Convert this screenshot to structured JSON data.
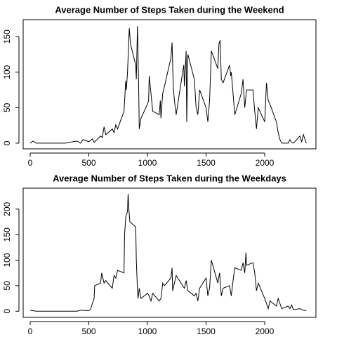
{
  "chart_data": [
    {
      "type": "line",
      "title": "Average Number of Steps Taken during the Weekend",
      "color": "#000000",
      "x": [
        0,
        25,
        50,
        100,
        200,
        300,
        330,
        400,
        430,
        450,
        500,
        530,
        545,
        600,
        615,
        630,
        645,
        700,
        715,
        730,
        745,
        800,
        815,
        820,
        830,
        845,
        855,
        900,
        905,
        915,
        925,
        930,
        945,
        1000,
        1010,
        1015,
        1030,
        1045,
        1100,
        1110,
        1115,
        1130,
        1145,
        1200,
        1210,
        1220,
        1230,
        1245,
        1300,
        1310,
        1315,
        1330,
        1335,
        1345,
        1400,
        1415,
        1430,
        1445,
        1500,
        1515,
        1530,
        1545,
        1600,
        1610,
        1620,
        1630,
        1645,
        1700,
        1710,
        1715,
        1730,
        1745,
        1800,
        1815,
        1830,
        1845,
        1900,
        1915,
        1930,
        1945,
        2000,
        2015,
        2030,
        2045,
        2100,
        2115,
        2130,
        2145,
        2200,
        2215,
        2230,
        2245,
        2300,
        2315,
        2330,
        2355
      ],
      "values": [
        0,
        3,
        0,
        0,
        0,
        0,
        1,
        3,
        0,
        5,
        2,
        6,
        1,
        10,
        8,
        23,
        12,
        20,
        15,
        26,
        20,
        45,
        88,
        75,
        100,
        162,
        140,
        110,
        90,
        165,
        80,
        20,
        35,
        55,
        60,
        95,
        70,
        45,
        40,
        60,
        35,
        70,
        80,
        120,
        142,
        80,
        60,
        40,
        100,
        110,
        80,
        130,
        30,
        125,
        90,
        50,
        40,
        75,
        50,
        30,
        60,
        130,
        105,
        140,
        145,
        90,
        85,
        110,
        95,
        100,
        70,
        40,
        70,
        90,
        50,
        75,
        75,
        45,
        20,
        50,
        30,
        85,
        60,
        55,
        30,
        15,
        5,
        0,
        0,
        5,
        1,
        0,
        10,
        2,
        12,
        0
      ],
      "xlim": [
        -60,
        2437
      ],
      "ylim": [
        -8,
        174
      ],
      "xticks": [
        0,
        500,
        1000,
        1500,
        2000
      ],
      "yticks": [
        0,
        50,
        100,
        150
      ]
    },
    {
      "type": "line",
      "title": "Average Number of Steps Taken during the Weekdays",
      "color": "#000000",
      "x": [
        0,
        50,
        100,
        200,
        300,
        400,
        430,
        500,
        515,
        530,
        545,
        550,
        600,
        610,
        620,
        630,
        645,
        700,
        715,
        730,
        745,
        800,
        805,
        815,
        830,
        835,
        840,
        850,
        900,
        905,
        915,
        920,
        930,
        945,
        1000,
        1015,
        1030,
        1045,
        1100,
        1115,
        1130,
        1145,
        1200,
        1210,
        1215,
        1230,
        1245,
        1300,
        1315,
        1330,
        1345,
        1400,
        1415,
        1430,
        1445,
        1500,
        1515,
        1530,
        1545,
        1600,
        1615,
        1630,
        1645,
        1700,
        1715,
        1730,
        1745,
        1800,
        1815,
        1830,
        1840,
        1845,
        1900,
        1915,
        1930,
        1945,
        2000,
        2015,
        2030,
        2045,
        2100,
        2115,
        2130,
        2145,
        2200,
        2215,
        2230,
        2245,
        2300,
        2330,
        2355
      ],
      "values": [
        2,
        0,
        0,
        0,
        0,
        0,
        2,
        1,
        4,
        15,
        25,
        50,
        55,
        75,
        65,
        55,
        60,
        45,
        70,
        65,
        80,
        75,
        150,
        185,
        195,
        230,
        205,
        175,
        165,
        100,
        40,
        25,
        45,
        25,
        35,
        30,
        20,
        35,
        20,
        25,
        55,
        50,
        65,
        85,
        40,
        55,
        70,
        50,
        45,
        60,
        40,
        30,
        35,
        20,
        45,
        65,
        30,
        45,
        100,
        55,
        75,
        30,
        45,
        50,
        30,
        60,
        85,
        80,
        95,
        75,
        115,
        90,
        95,
        75,
        40,
        55,
        25,
        15,
        5,
        20,
        10,
        25,
        15,
        5,
        10,
        5,
        12,
        3,
        5,
        2,
        1
      ],
      "xlim": [
        -60,
        2437
      ],
      "ylim": [
        -12,
        241
      ],
      "xticks": [
        0,
        500,
        1000,
        1500,
        2000
      ],
      "yticks": [
        0,
        50,
        100,
        150,
        200
      ]
    }
  ]
}
